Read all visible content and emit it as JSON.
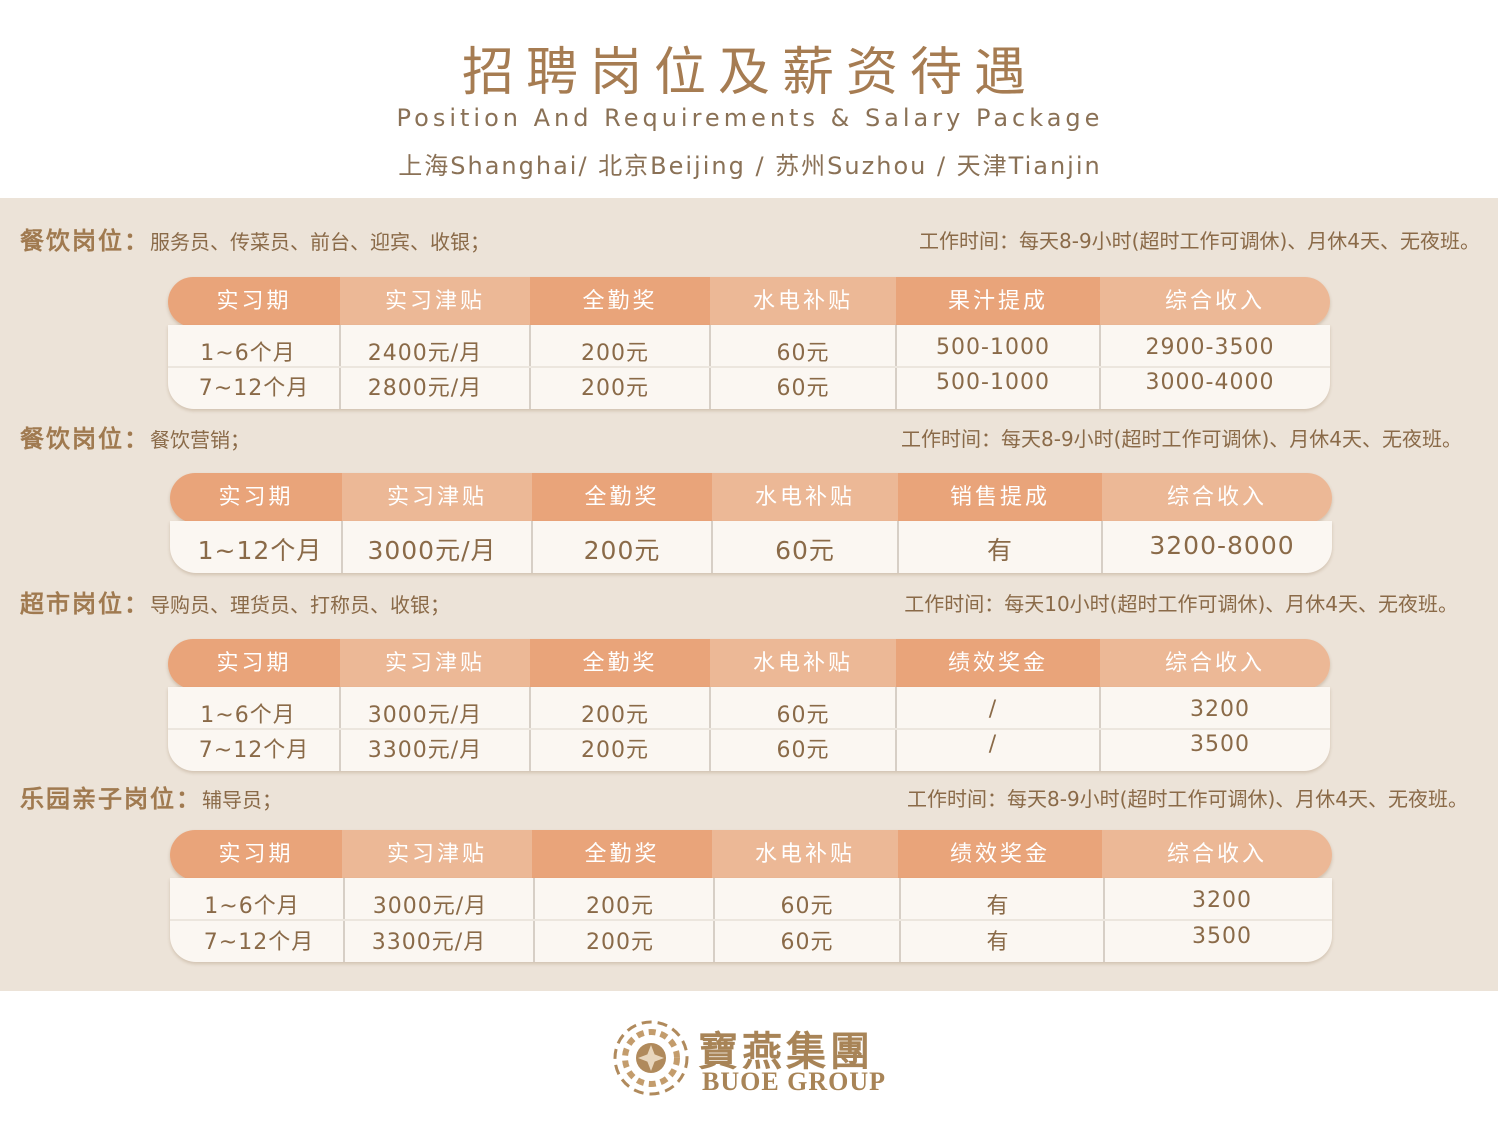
{
  "header": {
    "title": "招聘岗位及薪资待遇",
    "subtitle": "Position And Requirements & Salary Package",
    "cities": "上海Shanghai/ 北京Beijing / 苏州Suzhou / 天津Tianjin"
  },
  "sections": [
    {
      "name": "餐饮岗位：",
      "roles": "服务员、传菜员、前台、迎宾、收银；",
      "hours": "工作时间：每天8-9小时(超时工作可调休)、月休4天、无夜班。",
      "headers": [
        "实习期",
        "实习津贴",
        "全勤奖",
        "水电补贴",
        "果汁提成",
        "综合收入"
      ],
      "rows": [
        [
          "1~6个月",
          "2400元/月",
          "200元",
          "60元",
          "500-1000",
          "2900-3500"
        ],
        [
          "7~12个月",
          "2800元/月",
          "200元",
          "60元",
          "500-1000",
          "3000-4000"
        ]
      ]
    },
    {
      "name": "餐饮岗位：",
      "roles": "餐饮营销；",
      "hours": "工作时间：每天8-9小时(超时工作可调休)、月休4天、无夜班。",
      "headers": [
        "实习期",
        "实习津贴",
        "全勤奖",
        "水电补贴",
        "销售提成",
        "综合收入"
      ],
      "rows": [
        [
          "1~12个月",
          "3000元/月",
          "200元",
          "60元",
          "有",
          "3200-8000"
        ]
      ]
    },
    {
      "name": "超市岗位：",
      "roles": "导购员、理货员、打称员、收银；",
      "hours": "工作时间：每天10小时(超时工作可调休)、月休4天、无夜班。",
      "headers": [
        "实习期",
        "实习津贴",
        "全勤奖",
        "水电补贴",
        "绩效奖金",
        "综合收入"
      ],
      "rows": [
        [
          "1~6个月",
          "3000元/月",
          "200元",
          "60元",
          "/",
          "3200"
        ],
        [
          "7~12个月",
          "3300元/月",
          "200元",
          "60元",
          "/",
          "3500"
        ]
      ]
    },
    {
      "name": "乐园亲子岗位：",
      "roles": "辅导员；",
      "hours": "工作时间：每天8-9小时(超时工作可调休)、月休4天、无夜班。",
      "headers": [
        "实习期",
        "实习津贴",
        "全勤奖",
        "水电补贴",
        "绩效奖金",
        "综合收入"
      ],
      "rows": [
        [
          "1~6个月",
          "3000元/月",
          "200元",
          "60元",
          "有",
          "3200"
        ],
        [
          "7~12个月",
          "3300元/月",
          "200元",
          "60元",
          "有",
          "3500"
        ]
      ]
    }
  ],
  "logo": {
    "cn": "寶燕集團",
    "en": "BUOE GROUP"
  },
  "colors": {
    "panel": "#ece3d8",
    "header_dark": "#e9a47a",
    "header_light": "#ecb896",
    "text": "#8a6a48"
  }
}
